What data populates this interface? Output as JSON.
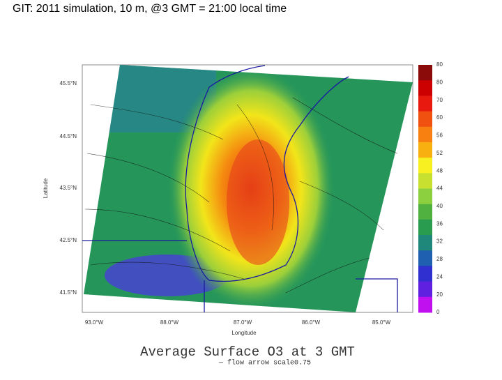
{
  "header": {
    "title": "GIT: 2011 simulation, 10 m, @3 GMT = 21:00 local time"
  },
  "map": {
    "latitude_labels": [
      "45.5°N",
      "44.5°N",
      "43.5°N",
      "42.5°N",
      "41.5°N"
    ],
    "longitude_labels": [
      "93.0°W",
      "88.0°W",
      "87.0°W",
      "86.0°W",
      "85.0°W"
    ],
    "x_axis_label": "Longitude",
    "y_axis_label": "Latitude",
    "title": "Average Surface O3 at 3 GMT",
    "subtitle": "— flow arrow scale0.75"
  },
  "colorbar": {
    "labels": [
      "80",
      "80",
      "70",
      "60",
      "56",
      "52",
      "48",
      "44",
      "40",
      "36",
      "32",
      "28",
      "24",
      "20",
      "0"
    ]
  }
}
